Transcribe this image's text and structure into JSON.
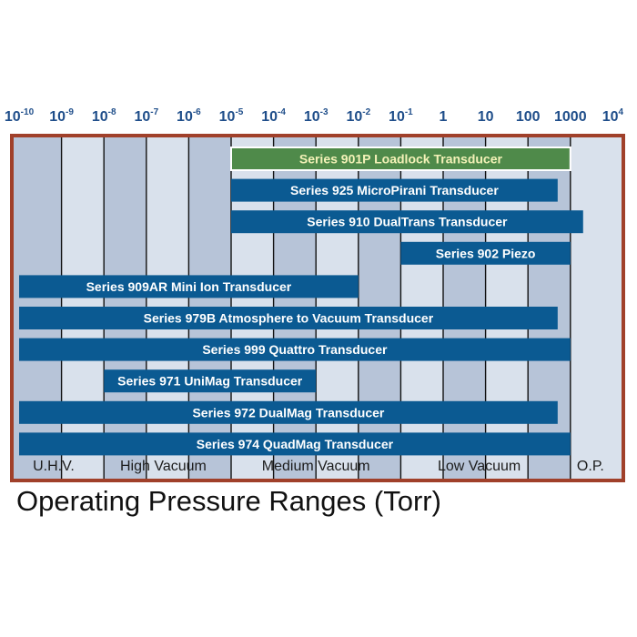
{
  "chart_data": {
    "type": "bar",
    "orientation": "horizontal-range",
    "x_scale": "log",
    "x_unit": "Torr",
    "caption": "Operating Pressure Ranges (Torr)",
    "ticks": [
      {
        "base": "10",
        "exp": "-10"
      },
      {
        "base": "10",
        "exp": "-9"
      },
      {
        "base": "10",
        "exp": "-8"
      },
      {
        "base": "10",
        "exp": "-7"
      },
      {
        "base": "10",
        "exp": "-6"
      },
      {
        "base": "10",
        "exp": "-5"
      },
      {
        "base": "10",
        "exp": "-4"
      },
      {
        "base": "10",
        "exp": "-3"
      },
      {
        "base": "10",
        "exp": "-2"
      },
      {
        "base": "10",
        "exp": "-1"
      },
      {
        "base": "1",
        "exp": ""
      },
      {
        "base": "10",
        "exp": ""
      },
      {
        "base": "100",
        "exp": ""
      },
      {
        "base": "1000",
        "exp": ""
      },
      {
        "base": "10",
        "exp": "4"
      }
    ],
    "regions": [
      {
        "label": "U.H.V.",
        "from": -10,
        "to": -8.2
      },
      {
        "label": "High Vacuum",
        "from": -8.2,
        "to": -5
      },
      {
        "label": "Medium Vacuum",
        "from": -5,
        "to": -1
      },
      {
        "label": "Low Vacuum",
        "from": -1,
        "to": 2.7
      },
      {
        "label": "O.P.",
        "from": 2.7,
        "to": 4
      }
    ],
    "bars": [
      {
        "label": "Series 901P Loadlock Transducer",
        "from": -5,
        "to": 3,
        "highlight": true
      },
      {
        "label": "Series 925 MicroPirani Transducer",
        "from": -5,
        "to": 2.7
      },
      {
        "label": "Series 910 DualTrans Transducer",
        "from": -5,
        "to": 3.3
      },
      {
        "label": "Series 902 Piezo",
        "from": -1,
        "to": 3
      },
      {
        "label": "Series 909AR Mini Ion Transducer",
        "from": -10,
        "to": -2
      },
      {
        "label": "Series 979B Atmosphere to Vacuum Transducer",
        "from": -10,
        "to": 2.7
      },
      {
        "label": "Series 999 Quattro Transducer",
        "from": -10,
        "to": 3
      },
      {
        "label": "Series 971 UniMag Transducer",
        "from": -8,
        "to": -3
      },
      {
        "label": "Series 972 DualMag Transducer",
        "from": -10,
        "to": 2.7
      },
      {
        "label": "Series 974 QuadMag Transducer",
        "from": -10,
        "to": 3
      }
    ],
    "colors": {
      "frame": "#a0402a",
      "bar": "#0b5a92",
      "bar_highlight": "#4f8a4a",
      "column_dark": "#b7c4d8",
      "column_light": "#d9e1ec",
      "grid": "#111111",
      "tick_text": "#1f4e8a"
    }
  }
}
